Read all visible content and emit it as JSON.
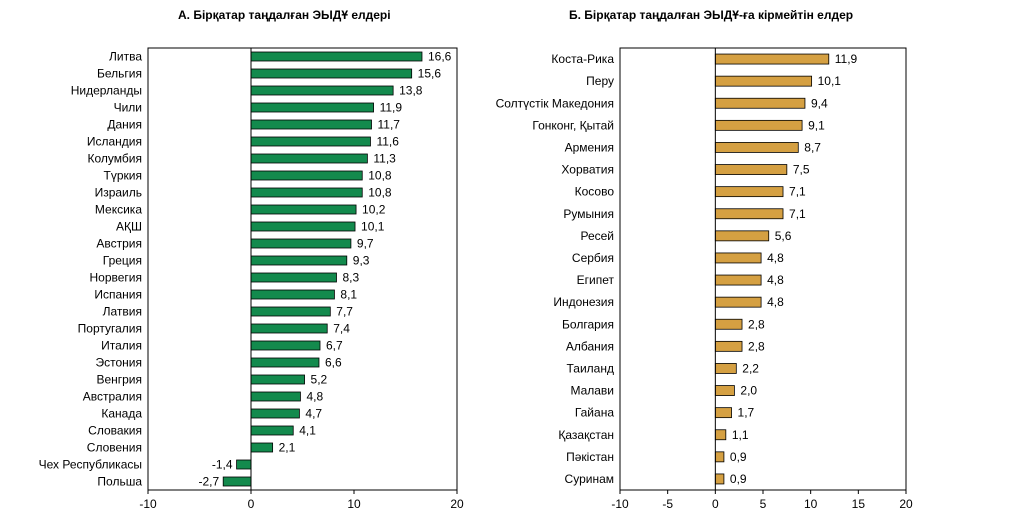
{
  "chart_data": [
    {
      "type": "bar",
      "orientation": "horizontal",
      "title": "А. Бірқатар таңдалған ЭЫДҰ елдері",
      "categories": [
        "Литва",
        "Бельгия",
        "Нидерланды",
        "Чили",
        "Дания",
        "Исландия",
        "Колумбия",
        "Түркия",
        "Израиль",
        "Мексика",
        "АҚШ",
        "Австрия",
        "Греция",
        "Норвегия",
        "Испания",
        "Латвия",
        "Португалия",
        "Италия",
        "Эстония",
        "Венгрия",
        "Австралия",
        "Канада",
        "Словакия",
        "Словения",
        "Чех Республикасы",
        "Польша"
      ],
      "values": [
        16.6,
        15.6,
        13.8,
        11.9,
        11.7,
        11.6,
        11.3,
        10.8,
        10.8,
        10.2,
        10.1,
        9.7,
        9.3,
        8.3,
        8.1,
        7.7,
        7.4,
        6.7,
        6.6,
        5.2,
        4.8,
        4.7,
        4.1,
        2.1,
        -1.4,
        -2.7
      ],
      "value_labels": [
        "16,6",
        "15,6",
        "13,8",
        "11,9",
        "11,7",
        "11,6",
        "11,3",
        "10,8",
        "10,8",
        "10,2",
        "10,1",
        "9,7",
        "9,3",
        "8,3",
        "8,1",
        "7,7",
        "7,4",
        "6,7",
        "6,6",
        "5,2",
        "4,8",
        "4,7",
        "4,1",
        "2,1",
        "-1,4",
        "-2,7"
      ],
      "xlim": [
        -10,
        20
      ],
      "xticks": [
        -10,
        0,
        10,
        20
      ],
      "xtick_labels": [
        "-10",
        "0",
        "10",
        "20"
      ],
      "bar_color": "#138a4d",
      "grid": false
    },
    {
      "type": "bar",
      "orientation": "horizontal",
      "title": "Б. Бірқатар таңдалған ЭЫДҰ-ға кірмейтін елдер",
      "categories": [
        "Коста-Рика",
        "Перу",
        "Солтүстік Македония",
        "Гонконг, Қытай",
        "Армения",
        "Хорватия",
        "Косово",
        "Румыния",
        "Ресей",
        "Сербия",
        "Египет",
        "Индонезия",
        "Болгария",
        "Албания",
        "Таиланд",
        "Малави",
        "Гайана",
        "Қазақстан",
        "Пәкістан",
        "Суринам"
      ],
      "values": [
        11.9,
        10.1,
        9.4,
        9.1,
        8.7,
        7.5,
        7.1,
        7.1,
        5.6,
        4.8,
        4.8,
        4.8,
        2.8,
        2.8,
        2.2,
        2.0,
        1.7,
        1.1,
        0.9,
        0.9
      ],
      "value_labels": [
        "11,9",
        "10,1",
        "9,4",
        "9,1",
        "8,7",
        "7,5",
        "7,1",
        "7,1",
        "5,6",
        "4,8",
        "4,8",
        "4,8",
        "2,8",
        "2,8",
        "2,2",
        "2,0",
        "1,7",
        "1,1",
        "0,9",
        "0,9"
      ],
      "xlim": [
        -10,
        20
      ],
      "xticks": [
        -10,
        -5,
        0,
        5,
        10,
        15,
        20
      ],
      "xtick_labels": [
        "-10",
        "-5",
        "0",
        "5",
        "10",
        "15",
        "20"
      ],
      "bar_color": "#d5a042",
      "grid": false
    }
  ]
}
